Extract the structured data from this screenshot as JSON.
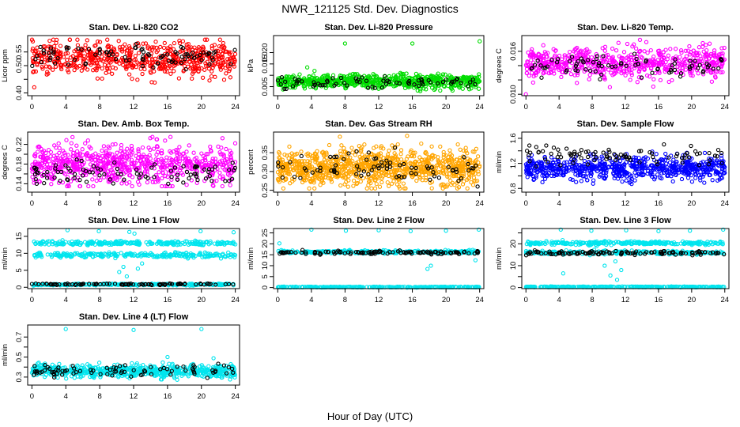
{
  "figure": {
    "title": "NWR_121125  Std. Dev. Diagnostics",
    "xlabel": "Hour of Day (UTC)"
  },
  "chart_data": [
    {
      "type": "scatter",
      "title": "Stan. Dev. Li-820 CO2",
      "ylabel": "Licor ppm",
      "xlim": [
        0,
        24
      ],
      "xticks": [
        0,
        4,
        8,
        12,
        16,
        20,
        24
      ],
      "ylim": [
        0.39,
        0.61
      ],
      "yticks": [
        0.4,
        0.45,
        0.5,
        0.55
      ],
      "ytick_labels": [
        "0.40",
        "",
        "0.50",
        "0.55"
      ],
      "color": "#ff0000",
      "series": [
        {
          "name": "",
          "kind": "cloud",
          "x_range": [
            0,
            24
          ],
          "y_center": 0.525,
          "y_spread": 0.03,
          "y_min": 0.4,
          "y_max": 0.595,
          "n": 620,
          "color": "#ff0000"
        },
        {
          "name": "",
          "kind": "cloud",
          "x_range": [
            0,
            24
          ],
          "y_center": 0.535,
          "y_spread": 0.02,
          "y_min": 0.48,
          "y_max": 0.58,
          "n": 90,
          "color": "#000000"
        }
      ]
    },
    {
      "type": "scatter",
      "title": "Stan. Dev. Li-820 Pressure",
      "ylabel": "kPa",
      "xlim": [
        0,
        24
      ],
      "xticks": [
        0,
        4,
        8,
        12,
        16,
        20,
        24
      ],
      "ylim": [
        0.001,
        0.0275
      ],
      "yticks": [
        0.005,
        0.01,
        0.015,
        0.02
      ],
      "ytick_labels": [
        "0.005",
        "",
        "0.015",
        "0.020"
      ],
      "color": "#00cc00",
      "series": [
        {
          "name": "",
          "kind": "cloud",
          "x_range": [
            0,
            24
          ],
          "y_center": 0.0072,
          "y_spread": 0.0015,
          "y_min": 0.003,
          "y_max": 0.012,
          "n": 700,
          "color": "#00dd00"
        },
        {
          "name": "",
          "kind": "cloud",
          "x_range": [
            0,
            24
          ],
          "y_center": 0.007,
          "y_spread": 0.0012,
          "y_min": 0.004,
          "y_max": 0.01,
          "n": 70,
          "color": "#000000"
        },
        {
          "name": "",
          "kind": "points",
          "x": [
            8,
            16,
            24,
            3.5
          ],
          "y": [
            0.024,
            0.024,
            0.025,
            0.0135
          ],
          "color": "#00dd00"
        }
      ]
    },
    {
      "type": "scatter",
      "title": "Stan. Dev. Li-820 Temp.",
      "ylabel": "degrees C",
      "xlim": [
        0,
        24
      ],
      "xticks": [
        0,
        4,
        8,
        12,
        16,
        20,
        24
      ],
      "ylim": [
        0.0098,
        0.0182
      ],
      "yticks": [
        0.01,
        0.012,
        0.014,
        0.016
      ],
      "ytick_labels": [
        "0.010",
        "",
        "",
        "0.016"
      ],
      "color": "#ff00ff",
      "series": [
        {
          "name": "",
          "kind": "cloud",
          "x_range": [
            0,
            24
          ],
          "y_center": 0.0143,
          "y_spread": 0.0011,
          "y_min": 0.0105,
          "y_max": 0.0176,
          "n": 620,
          "color": "#ff00ff"
        },
        {
          "name": "",
          "kind": "cloud",
          "x_range": [
            0,
            24
          ],
          "y_center": 0.014,
          "y_spread": 0.0009,
          "y_min": 0.012,
          "y_max": 0.0165,
          "n": 80,
          "color": "#000000"
        },
        {
          "name": "",
          "kind": "points",
          "x": [
            0
          ],
          "y": [
            0.01
          ],
          "color": "#ff00ff"
        }
      ]
    },
    {
      "type": "scatter",
      "title": "Stan. Dev. Amb. Box Temp.",
      "ylabel": "degrees C",
      "xlim": [
        0,
        24
      ],
      "xticks": [
        0,
        4,
        8,
        12,
        16,
        20,
        24
      ],
      "ylim": [
        0.123,
        0.245
      ],
      "yticks": [
        0.14,
        0.16,
        0.18,
        0.2,
        0.22
      ],
      "ytick_labels": [
        "0.14",
        "",
        "0.18",
        "",
        "0.22"
      ],
      "color": "#ff00ff",
      "series": [
        {
          "name": "",
          "kind": "cloud",
          "x_range": [
            0,
            24
          ],
          "y_center": 0.18,
          "y_spread": 0.02,
          "y_min": 0.135,
          "y_max": 0.235,
          "n": 720,
          "color": "#ff00ff"
        },
        {
          "name": "",
          "kind": "cloud",
          "x_range": [
            0,
            24
          ],
          "y_center": 0.162,
          "y_spread": 0.012,
          "y_min": 0.14,
          "y_max": 0.19,
          "n": 90,
          "color": "#000000"
        }
      ]
    },
    {
      "type": "scatter",
      "title": "Stan. Dev. Gas Stream RH",
      "ylabel": "percent",
      "xlim": [
        0,
        24
      ],
      "xticks": [
        0,
        4,
        8,
        12,
        16,
        20,
        24
      ],
      "ylim": [
        0.245,
        0.405
      ],
      "yticks": [
        0.25,
        0.3,
        0.35
      ],
      "ytick_labels": [
        "0.25",
        "0.30",
        "0.35"
      ],
      "color": "#ffa500",
      "series": [
        {
          "name": "",
          "kind": "cloud",
          "x_range": [
            0,
            24
          ],
          "y_center": 0.31,
          "y_spread": 0.025,
          "y_min": 0.255,
          "y_max": 0.395,
          "n": 950,
          "color": "#ffa500"
        },
        {
          "name": "",
          "kind": "cloud",
          "x_range": [
            0,
            24
          ],
          "y_center": 0.31,
          "y_spread": 0.022,
          "y_min": 0.26,
          "y_max": 0.375,
          "n": 80,
          "color": "#000000"
        }
      ]
    },
    {
      "type": "scatter",
      "title": "Stan. Dev. Sample Flow",
      "ylabel": "ml/min",
      "xlim": [
        0,
        24
      ],
      "xticks": [
        0,
        4,
        8,
        12,
        16,
        20,
        24
      ],
      "ylim": [
        0.74,
        1.7
      ],
      "yticks": [
        0.8,
        1.0,
        1.2,
        1.4,
        1.6
      ],
      "ytick_labels": [
        "0.8",
        "",
        "1.2",
        "",
        "1.6"
      ],
      "color": "#0000ff",
      "series": [
        {
          "name": "",
          "kind": "cloud",
          "x_range": [
            0,
            24
          ],
          "y_center": 1.12,
          "y_spread": 0.09,
          "y_min": 0.8,
          "y_max": 1.45,
          "n": 700,
          "color": "#0000ff"
        },
        {
          "name": "",
          "kind": "cloud",
          "x_range": [
            0,
            24
          ],
          "y_center": 1.33,
          "y_spread": 0.07,
          "y_min": 1.15,
          "y_max": 1.6,
          "n": 90,
          "color": "#000000"
        }
      ]
    },
    {
      "type": "scatter",
      "title": "Stan. Dev. Line 1 Flow",
      "ylabel": "ml/min",
      "xlim": [
        0,
        24
      ],
      "xticks": [
        0,
        4,
        8,
        12,
        16,
        20,
        24
      ],
      "ylim": [
        -0.4,
        17.3
      ],
      "yticks": [
        0,
        5,
        10,
        15
      ],
      "ytick_labels": [
        "0",
        "5",
        "10",
        "15"
      ],
      "color": "#00e5ee",
      "series": [
        {
          "name": "",
          "kind": "band",
          "x_range": [
            0,
            24
          ],
          "y_center": 13.0,
          "y_spread": 0.3,
          "n": 260,
          "color": "#00e5ee"
        },
        {
          "name": "",
          "kind": "band",
          "x_range": [
            0,
            24
          ],
          "y_center": 9.5,
          "y_spread": 0.35,
          "n": 260,
          "color": "#00e5ee"
        },
        {
          "name": "",
          "kind": "band",
          "x_range": [
            0,
            24
          ],
          "y_center": 0.8,
          "y_spread": 0.12,
          "n": 280,
          "color": "#00e5ee"
        },
        {
          "name": "",
          "kind": "band",
          "x_range": [
            0,
            24
          ],
          "y_center": 0.9,
          "y_spread": 0.1,
          "n": 90,
          "color": "#000000"
        },
        {
          "name": "",
          "kind": "points",
          "x": [
            4.2,
            7.9,
            11.5,
            12.1,
            19.9,
            23.8,
            10.3,
            10.8,
            11.2,
            12.5,
            13.0
          ],
          "y": [
            16.8,
            16.5,
            16.3,
            15.8,
            16.5,
            16.2,
            4.5,
            6.0,
            3.2,
            5.5,
            7.0
          ],
          "color": "#00e5ee"
        }
      ]
    },
    {
      "type": "scatter",
      "title": "Stan. Dev. Line 2 Flow",
      "ylabel": "ml/min",
      "xlim": [
        0,
        24
      ],
      "xticks": [
        0,
        4,
        8,
        12,
        16,
        20,
        24
      ],
      "ylim": [
        -0.5,
        27
      ],
      "yticks": [
        0,
        5,
        10,
        15,
        20,
        25
      ],
      "ytick_labels": [
        "0",
        "5",
        "10",
        "15",
        "20",
        "25"
      ],
      "color": "#00e5ee",
      "series": [
        {
          "name": "",
          "kind": "band",
          "x_range": [
            0,
            24
          ],
          "y_center": 16.3,
          "y_spread": 0.35,
          "n": 300,
          "color": "#00e5ee"
        },
        {
          "name": "",
          "kind": "band",
          "x_range": [
            0,
            24
          ],
          "y_center": 0.2,
          "y_spread": 0.08,
          "n": 320,
          "color": "#00e5ee"
        },
        {
          "name": "",
          "kind": "band",
          "x_range": [
            0,
            24
          ],
          "y_center": 16.0,
          "y_spread": 0.35,
          "n": 110,
          "color": "#000000"
        },
        {
          "name": "",
          "kind": "points",
          "x": [
            0.2,
            4.0,
            8.1,
            12.0,
            15.8,
            20.0,
            23.9,
            17.8,
            18.2,
            23.5
          ],
          "y": [
            20.2,
            26.5,
            26.0,
            26.2,
            25.8,
            26.0,
            26.5,
            8.5,
            10.0,
            12.5
          ],
          "color": "#00e5ee"
        }
      ]
    },
    {
      "type": "scatter",
      "title": "Stan. Dev. Line 3 Flow",
      "ylabel": "ml/min",
      "xlim": [
        0,
        24
      ],
      "xticks": [
        0,
        4,
        8,
        12,
        16,
        20,
        24
      ],
      "ylim": [
        -0.5,
        27
      ],
      "yticks": [
        0,
        5,
        10,
        15,
        20,
        25
      ],
      "ytick_labels": [
        "0",
        "",
        "10",
        "",
        "20",
        ""
      ],
      "color": "#00e5ee",
      "series": [
        {
          "name": "",
          "kind": "band",
          "x_range": [
            0,
            24
          ],
          "y_center": 20.3,
          "y_spread": 0.4,
          "n": 260,
          "color": "#00e5ee"
        },
        {
          "name": "",
          "kind": "band",
          "x_range": [
            0,
            24
          ],
          "y_center": 16.0,
          "y_spread": 0.4,
          "n": 240,
          "color": "#00e5ee"
        },
        {
          "name": "",
          "kind": "band",
          "x_range": [
            0,
            24
          ],
          "y_center": 0.3,
          "y_spread": 0.08,
          "n": 320,
          "color": "#00e5ee"
        },
        {
          "name": "",
          "kind": "band",
          "x_range": [
            0,
            24
          ],
          "y_center": 15.8,
          "y_spread": 0.45,
          "n": 110,
          "color": "#000000"
        },
        {
          "name": "",
          "kind": "points",
          "x": [
            4.2,
            7.9,
            12.1,
            16.0,
            19.8,
            23.8,
            4.5,
            9.5,
            10.2,
            10.8,
            11.0,
            11.5
          ],
          "y": [
            26.5,
            26.0,
            26.2,
            25.8,
            26.0,
            26.5,
            6.5,
            10.0,
            5.5,
            12.0,
            3.5,
            8.0
          ],
          "color": "#00e5ee"
        }
      ]
    },
    {
      "type": "scatter",
      "title": "Stan. Dev. Line 4 (LT) Flow",
      "ylabel": "ml/min",
      "xlim": [
        0,
        24
      ],
      "xticks": [
        0,
        4,
        8,
        12,
        16,
        20,
        24
      ],
      "ylim": [
        0.22,
        0.82
      ],
      "yticks": [
        0.3,
        0.4,
        0.5,
        0.6,
        0.7
      ],
      "ytick_labels": [
        "0.3",
        "",
        "0.5",
        "",
        "0.7"
      ],
      "color": "#00e5ee",
      "series": [
        {
          "name": "",
          "kind": "cloud",
          "x_range": [
            0,
            24
          ],
          "y_center": 0.36,
          "y_spread": 0.03,
          "y_min": 0.25,
          "y_max": 0.5,
          "n": 650,
          "color": "#00e5ee"
        },
        {
          "name": "",
          "kind": "cloud",
          "x_range": [
            0,
            24
          ],
          "y_center": 0.36,
          "y_spread": 0.03,
          "y_min": 0.27,
          "y_max": 0.45,
          "n": 80,
          "color": "#000000"
        },
        {
          "name": "",
          "kind": "points",
          "x": [
            4.0,
            12.0,
            20.0,
            16.0
          ],
          "y": [
            0.78,
            0.77,
            0.78,
            0.5
          ],
          "color": "#00e5ee"
        }
      ]
    }
  ]
}
